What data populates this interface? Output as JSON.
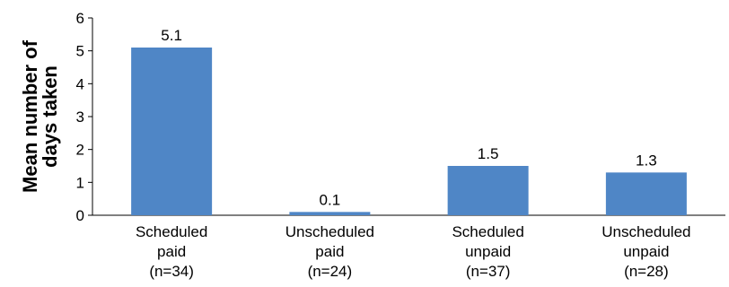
{
  "chart_data": {
    "type": "bar",
    "categories": [
      [
        "Scheduled",
        "paid",
        "(n=34)"
      ],
      [
        "Unscheduled",
        "paid",
        "(n=24)"
      ],
      [
        "Scheduled",
        "unpaid",
        "(n=37)"
      ],
      [
        "Unscheduled",
        "unpaid",
        "(n=28)"
      ]
    ],
    "values": [
      5.1,
      0.1,
      1.5,
      1.3
    ],
    "data_labels": [
      "5.1",
      "0.1",
      "1.5",
      "1.3"
    ],
    "title": "",
    "xlabel": "",
    "ylabel": [
      "Mean number of",
      "days taken"
    ],
    "ylim": [
      0,
      6
    ],
    "yticks": [
      0,
      1,
      2,
      3,
      4,
      5,
      6
    ],
    "grid": false,
    "legend": "none",
    "bar_color": "#4f86c6"
  }
}
